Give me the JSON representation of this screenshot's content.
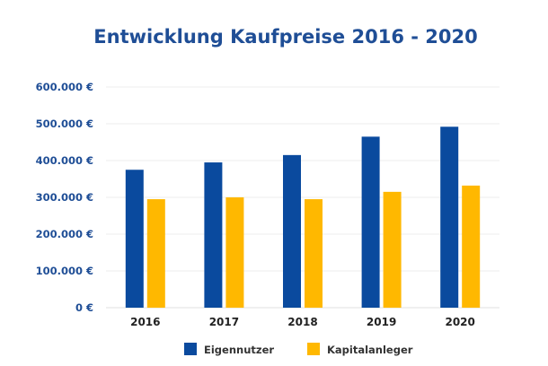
{
  "chart_data": {
    "type": "bar",
    "title": "Entwicklung Kaufpreise 2016 - 2020",
    "categories": [
      "2016",
      "2017",
      "2018",
      "2019",
      "2020"
    ],
    "series": [
      {
        "name": "Eigennutzer",
        "color": "#0a4a9e",
        "values": [
          375000,
          395000,
          415000,
          465000,
          492000
        ]
      },
      {
        "name": "Kapitalanleger",
        "color": "#ffb800",
        "values": [
          295000,
          300000,
          295000,
          315000,
          332000
        ]
      }
    ],
    "ylim": [
      0,
      600000
    ],
    "yticks": [
      {
        "value": 0,
        "label": "0 €"
      },
      {
        "value": 100000,
        "label": "100.000 €"
      },
      {
        "value": 200000,
        "label": "200.000 €"
      },
      {
        "value": 300000,
        "label": "300.000 €"
      },
      {
        "value": 400000,
        "label": "400.000 €"
      },
      {
        "value": 500000,
        "label": "500.000 €"
      },
      {
        "value": 600000,
        "label": "600.000 €"
      }
    ],
    "grid": true,
    "legend_position": "bottom-center"
  }
}
